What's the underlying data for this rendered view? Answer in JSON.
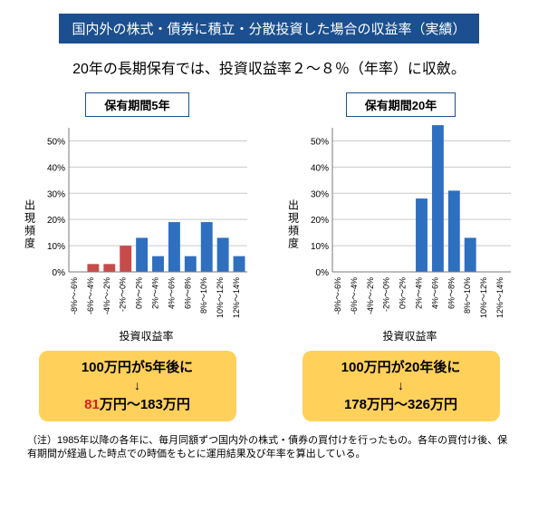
{
  "banner": "国内外の株式・債券に積立・分散投資した場合の収益率（実績）",
  "subtitle": "20年の長期保有では、投資収益率２～８％（年率）に収斂。",
  "yAxisLabel": "出現頻度",
  "xAxisLabel": "投資収益率",
  "categories": [
    "-8%～-6%",
    "-6%～-4%",
    "-4%～-2%",
    "-2%～0%",
    "0%～2%",
    "2%～4%",
    "4%～6%",
    "6%～8%",
    "8%～10%",
    "10%～12%",
    "12%～14%"
  ],
  "yTicks": [
    0,
    10,
    20,
    30,
    40,
    50
  ],
  "yMax": 55,
  "colors": {
    "barBlue": "#2f6fc0",
    "barRed": "#c84b4b",
    "gridline": "#c9c9c9",
    "axis": "#7a7a7a",
    "border": "#1b4f8f",
    "resultBg": "#ffd05a",
    "redText": "#d92020"
  },
  "chart5": {
    "title": "保有期間5年",
    "values": [
      0,
      3,
      3,
      10,
      13,
      6,
      19,
      6,
      19,
      13,
      6
    ],
    "negIdx": [
      0,
      1,
      2,
      3
    ],
    "result_l1": "100万円が5年後に",
    "result_l2": "↓",
    "result_red": "81",
    "result_l3_rest": "万円～183万円"
  },
  "chart20": {
    "title": "保有期間20年",
    "values": [
      0,
      0,
      0,
      0,
      0,
      28,
      56,
      31,
      13,
      0,
      0
    ],
    "negIdx": [],
    "result_l1": "100万円が20年後に",
    "result_l2": "↓",
    "result_l3": "178万円～326万円"
  },
  "footnote": "（注）1985年以降の各年に、毎月同額ずつ国内外の株式・債券の買付けを行ったもの。各年の買付け後、保有期間が経過した時点での時価をもとに運用結果及び年率を算出している。"
}
